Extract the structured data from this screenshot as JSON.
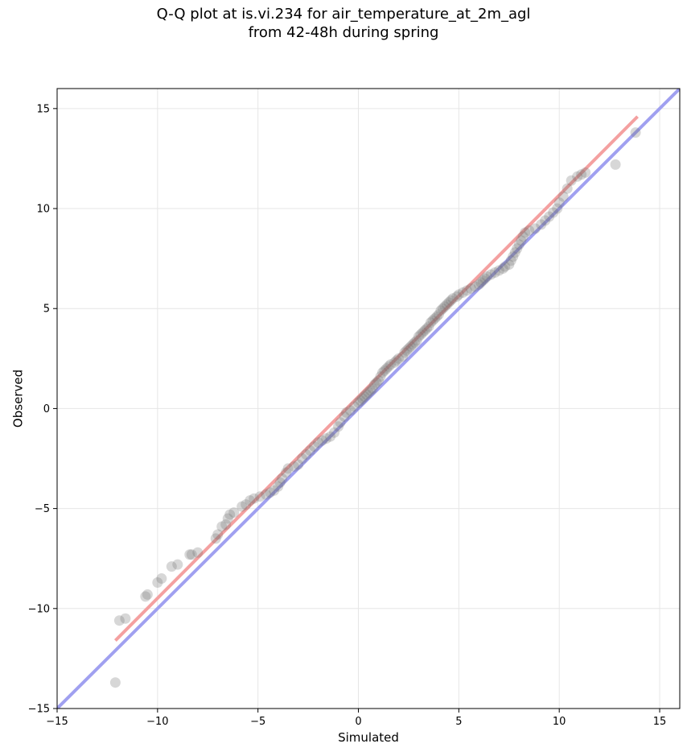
{
  "chart_data": {
    "type": "scatter",
    "title": "Q-Q plot at is.vi.234 for air_temperature_at_2m_agl",
    "subtitle": "from 42-48h during spring",
    "xlabel": "Simulated",
    "ylabel": "Observed",
    "xlim": [
      -15,
      16
    ],
    "ylim": [
      -15,
      16
    ],
    "xticks": [
      -15,
      -10,
      -5,
      0,
      5,
      10,
      15
    ],
    "yticks": [
      -15,
      -10,
      -5,
      0,
      5,
      10,
      15
    ],
    "xtick_labels": [
      "−15",
      "−10",
      "−5",
      "0",
      "5",
      "10",
      "15"
    ],
    "ytick_labels": [
      "−15",
      "−10",
      "−5",
      "0",
      "5",
      "10",
      "15"
    ],
    "grid": true,
    "reference_lines": [
      {
        "label": "",
        "color": "#a0a0f0",
        "x": [
          -15,
          16
        ],
        "y": [
          -15,
          16
        ]
      },
      {
        "label": "",
        "color": "#f4a0a0",
        "x": [
          -12.1,
          13.9
        ],
        "y": [
          -11.6,
          14.6
        ]
      }
    ],
    "point_color": "#707070",
    "points": [
      [
        -12.1,
        -13.7
      ],
      [
        -11.9,
        -10.6
      ],
      [
        -11.6,
        -10.5
      ],
      [
        -10.6,
        -9.4
      ],
      [
        -10.5,
        -9.3
      ],
      [
        -10.0,
        -8.7
      ],
      [
        -9.8,
        -8.5
      ],
      [
        -9.3,
        -7.9
      ],
      [
        -9.0,
        -7.8
      ],
      [
        -8.4,
        -7.3
      ],
      [
        -8.3,
        -7.3
      ],
      [
        -8.0,
        -7.2
      ],
      [
        -7.1,
        -6.5
      ],
      [
        -7.0,
        -6.3
      ],
      [
        -6.8,
        -5.9
      ],
      [
        -6.6,
        -5.8
      ],
      [
        -6.5,
        -5.5
      ],
      [
        -6.4,
        -5.3
      ],
      [
        -6.2,
        -5.2
      ],
      [
        -5.8,
        -4.9
      ],
      [
        -5.6,
        -4.8
      ],
      [
        -5.4,
        -4.6
      ],
      [
        -5.2,
        -4.5
      ],
      [
        -4.9,
        -4.4
      ],
      [
        -4.6,
        -4.3
      ],
      [
        -4.4,
        -4.2
      ],
      [
        -4.2,
        -4.1
      ],
      [
        -4.0,
        -3.9
      ],
      [
        -3.9,
        -3.7
      ],
      [
        -3.8,
        -3.5
      ],
      [
        -3.6,
        -3.2
      ],
      [
        -3.5,
        -3.0
      ],
      [
        -3.2,
        -2.9
      ],
      [
        -3.0,
        -2.8
      ],
      [
        -2.8,
        -2.5
      ],
      [
        -2.6,
        -2.3
      ],
      [
        -2.4,
        -2.1
      ],
      [
        -2.2,
        -1.9
      ],
      [
        -2.0,
        -1.7
      ],
      [
        -1.8,
        -1.6
      ],
      [
        -1.6,
        -1.5
      ],
      [
        -1.4,
        -1.4
      ],
      [
        -1.2,
        -1.2
      ],
      [
        -1.0,
        -0.9
      ],
      [
        -0.9,
        -0.7
      ],
      [
        -0.7,
        -0.4
      ],
      [
        -0.6,
        -0.2
      ],
      [
        -0.4,
        -0.1
      ],
      [
        -0.2,
        0.1
      ],
      [
        0.0,
        0.3
      ],
      [
        0.1,
        0.4
      ],
      [
        0.2,
        0.5
      ],
      [
        0.3,
        0.6
      ],
      [
        0.4,
        0.7
      ],
      [
        0.5,
        0.8
      ],
      [
        0.6,
        0.9
      ],
      [
        0.7,
        1.0
      ],
      [
        0.8,
        1.2
      ],
      [
        0.9,
        1.3
      ],
      [
        1.0,
        1.4
      ],
      [
        1.1,
        1.6
      ],
      [
        1.2,
        1.8
      ],
      [
        1.3,
        1.9
      ],
      [
        1.4,
        2.0
      ],
      [
        1.5,
        2.1
      ],
      [
        1.6,
        2.2
      ],
      [
        1.8,
        2.3
      ],
      [
        1.9,
        2.4
      ],
      [
        2.0,
        2.5
      ],
      [
        2.2,
        2.6
      ],
      [
        2.3,
        2.8
      ],
      [
        2.4,
        2.9
      ],
      [
        2.5,
        3.0
      ],
      [
        2.6,
        3.1
      ],
      [
        2.7,
        3.2
      ],
      [
        2.8,
        3.3
      ],
      [
        2.9,
        3.4
      ],
      [
        3.0,
        3.6
      ],
      [
        3.1,
        3.7
      ],
      [
        3.2,
        3.8
      ],
      [
        3.3,
        3.9
      ],
      [
        3.4,
        4.0
      ],
      [
        3.5,
        4.1
      ],
      [
        3.6,
        4.3
      ],
      [
        3.7,
        4.4
      ],
      [
        3.8,
        4.5
      ],
      [
        3.9,
        4.6
      ],
      [
        4.0,
        4.7
      ],
      [
        4.1,
        4.9
      ],
      [
        4.2,
        5.0
      ],
      [
        4.3,
        5.1
      ],
      [
        4.4,
        5.2
      ],
      [
        4.5,
        5.3
      ],
      [
        4.6,
        5.4
      ],
      [
        4.7,
        5.5
      ],
      [
        4.9,
        5.6
      ],
      [
        5.0,
        5.7
      ],
      [
        5.2,
        5.8
      ],
      [
        5.4,
        5.9
      ],
      [
        5.6,
        6.0
      ],
      [
        5.8,
        6.1
      ],
      [
        6.0,
        6.2
      ],
      [
        6.1,
        6.3
      ],
      [
        6.2,
        6.4
      ],
      [
        6.3,
        6.5
      ],
      [
        6.4,
        6.6
      ],
      [
        6.6,
        6.7
      ],
      [
        6.8,
        6.8
      ],
      [
        7.0,
        6.9
      ],
      [
        7.2,
        7.0
      ],
      [
        7.3,
        7.1
      ],
      [
        7.5,
        7.2
      ],
      [
        7.6,
        7.4
      ],
      [
        7.7,
        7.6
      ],
      [
        7.8,
        7.8
      ],
      [
        7.9,
        8.0
      ],
      [
        8.0,
        8.2
      ],
      [
        8.1,
        8.4
      ],
      [
        8.2,
        8.6
      ],
      [
        8.3,
        8.8
      ],
      [
        8.5,
        8.9
      ],
      [
        8.8,
        9.0
      ],
      [
        9.1,
        9.2
      ],
      [
        9.3,
        9.4
      ],
      [
        9.5,
        9.6
      ],
      [
        9.7,
        9.8
      ],
      [
        9.9,
        10.0
      ],
      [
        10.0,
        10.3
      ],
      [
        10.2,
        10.6
      ],
      [
        10.4,
        11.0
      ],
      [
        10.6,
        11.4
      ],
      [
        10.9,
        11.6
      ],
      [
        11.1,
        11.7
      ],
      [
        11.3,
        11.8
      ],
      [
        12.8,
        12.2
      ],
      [
        13.8,
        13.8
      ]
    ]
  }
}
